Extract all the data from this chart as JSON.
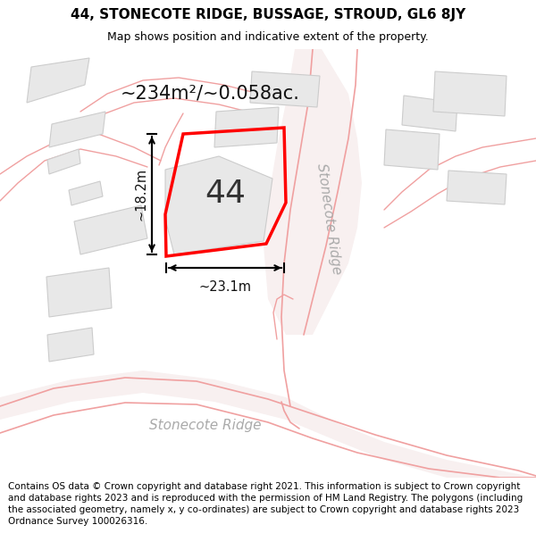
{
  "title": "44, STONECOTE RIDGE, BUSSAGE, STROUD, GL6 8JY",
  "subtitle": "Map shows position and indicative extent of the property.",
  "footer": "Contains OS data © Crown copyright and database right 2021. This information is subject to Crown copyright and database rights 2023 and is reproduced with the permission of HM Land Registry. The polygons (including the associated geometry, namely x, y co-ordinates) are subject to Crown copyright and database rights 2023 Ordnance Survey 100026316.",
  "area_text": "~234m²/~0.058ac.",
  "width_text": "~23.1m",
  "height_text": "~18.2m",
  "property_number": "44",
  "road_label_bottom": "Stonecote Ridge",
  "road_label_right": "Stonecote Ridge",
  "background_color": "#ffffff",
  "map_bg": "#ffffff",
  "building_color": "#e8e8e8",
  "road_color": "#f0c8c8",
  "highlight_color": "#ff0000",
  "title_fontsize": 11,
  "subtitle_fontsize": 9,
  "footer_fontsize": 7.5
}
